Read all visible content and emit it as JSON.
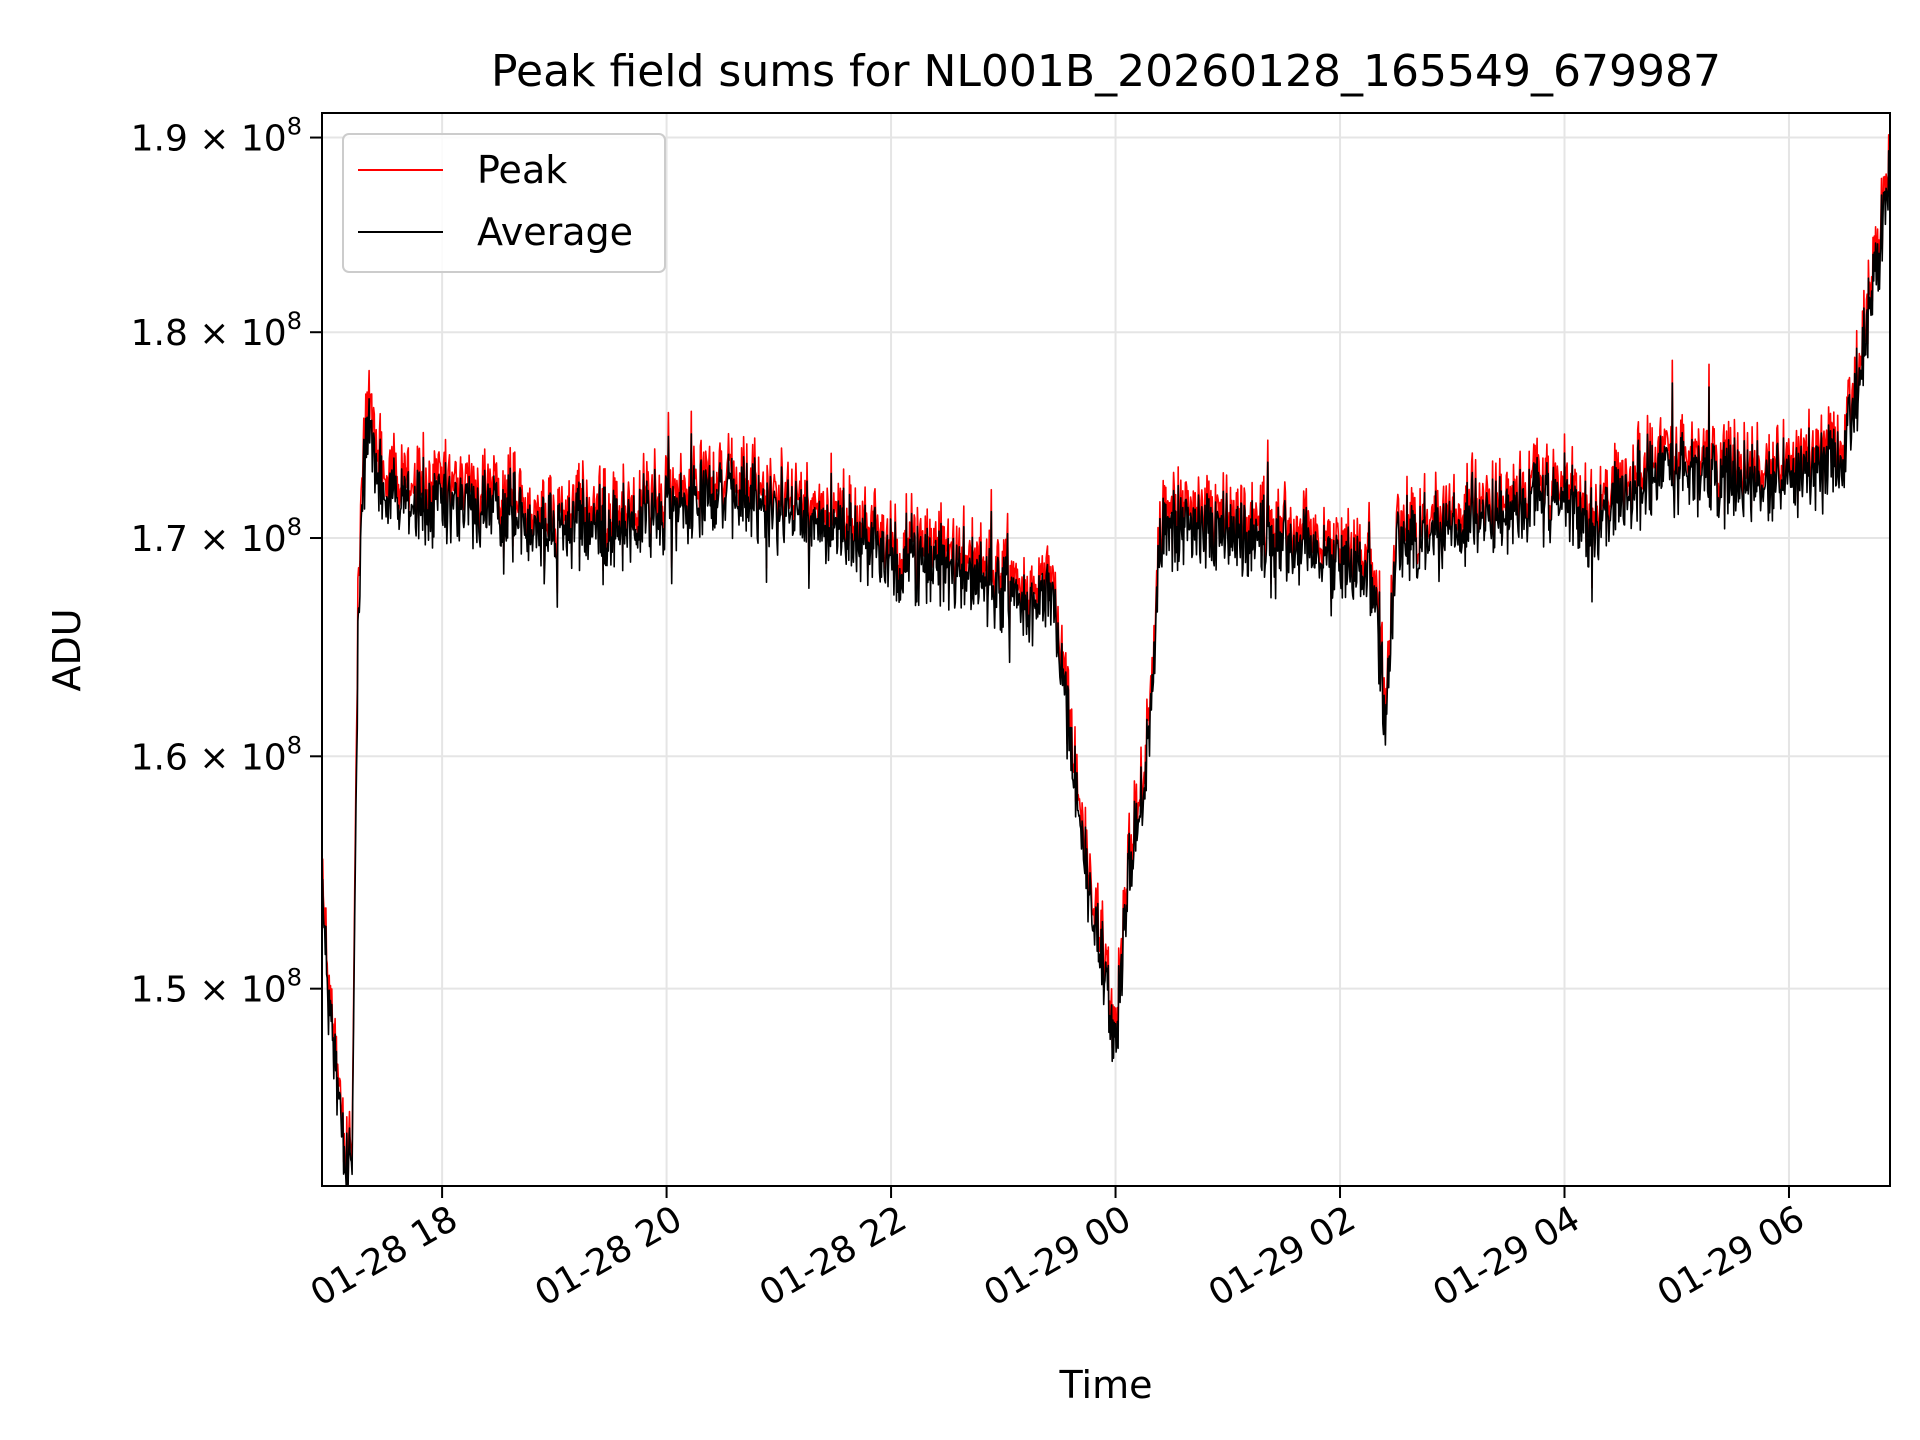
{
  "chart_data": {
    "type": "line",
    "title": "Peak field sums for NL001B_20260128_165549_679987",
    "xlabel": "Time",
    "ylabel": "ADU",
    "y_scale": "log",
    "grid": true,
    "legend_position": "top-left",
    "xlim_hours": [
      16.93,
      30.9
    ],
    "ylim": [
      142000000,
      191300000
    ],
    "x_ticks": [
      {
        "value": 18,
        "label": "01-28 18"
      },
      {
        "value": 20,
        "label": "01-28 20"
      },
      {
        "value": 22,
        "label": "01-28 22"
      },
      {
        "value": 24,
        "label": "01-29 00"
      },
      {
        "value": 26,
        "label": "01-29 02"
      },
      {
        "value": 28,
        "label": "01-29 04"
      },
      {
        "value": 30,
        "label": "01-29 06"
      }
    ],
    "y_ticks": [
      {
        "value": 150000000,
        "mantissa": "1.5",
        "base": "× 10",
        "exp": "8"
      },
      {
        "value": 160000000,
        "mantissa": "1.6",
        "base": "× 10",
        "exp": "8"
      },
      {
        "value": 170000000,
        "mantissa": "1.7",
        "base": "× 10",
        "exp": "8"
      },
      {
        "value": 180000000,
        "mantissa": "1.8",
        "base": "× 10",
        "exp": "8"
      },
      {
        "value": 190000000,
        "mantissa": "1.9",
        "base": "× 10",
        "exp": "8"
      }
    ],
    "series": [
      {
        "name": "Peak",
        "color": "#ff0000",
        "x_hours": [
          16.93,
          17.0,
          17.1,
          17.15,
          17.2,
          17.25,
          17.3,
          17.35,
          17.5,
          17.75,
          18.0,
          18.5,
          19.0,
          19.5,
          20.0,
          20.3,
          20.5,
          21.0,
          21.5,
          22.0,
          22.5,
          23.0,
          23.3,
          23.45,
          23.55,
          23.6,
          23.7,
          23.8,
          23.9,
          24.0,
          24.1,
          24.2,
          24.3,
          24.35,
          24.4,
          24.5,
          25.0,
          25.5,
          26.0,
          26.3,
          26.4,
          26.5,
          27.0,
          27.5,
          28.0,
          28.3,
          28.5,
          29.0,
          29.5,
          30.0,
          30.3,
          30.5,
          30.7,
          30.9
        ],
        "values": [
          154800000,
          149000000,
          145000000,
          143000000,
          143200000,
          168000000,
          175500000,
          176000000,
          173000000,
          172500000,
          172200000,
          172000000,
          171500000,
          171200000,
          172000000,
          173000000,
          172800000,
          172000000,
          171000000,
          170000000,
          169500000,
          168500000,
          167500000,
          168000000,
          163000000,
          161000000,
          157000000,
          153500000,
          151500000,
          147500000,
          155000000,
          157500000,
          161000000,
          166000000,
          171000000,
          171200000,
          171000000,
          170500000,
          169500000,
          169000000,
          162000000,
          170500000,
          171000000,
          172000000,
          172500000,
          171000000,
          173000000,
          174000000,
          173500000,
          173500000,
          174000000,
          175000000,
          181000000,
          189000000
        ]
      },
      {
        "name": "Average",
        "color": "#000000",
        "x_hours": [
          16.93,
          17.0,
          17.1,
          17.15,
          17.2,
          17.25,
          17.3,
          17.35,
          17.5,
          17.75,
          18.0,
          18.5,
          19.0,
          19.5,
          20.0,
          20.3,
          20.5,
          21.0,
          21.5,
          22.0,
          22.5,
          23.0,
          23.3,
          23.45,
          23.55,
          23.6,
          23.7,
          23.8,
          23.9,
          24.0,
          24.1,
          24.2,
          24.3,
          24.35,
          24.4,
          24.5,
          25.0,
          25.5,
          26.0,
          26.3,
          26.4,
          26.5,
          27.0,
          27.5,
          28.0,
          28.3,
          28.5,
          29.0,
          29.5,
          30.0,
          30.3,
          30.5,
          30.7,
          30.9
        ],
        "values": [
          154000000,
          148500000,
          144500000,
          142500000,
          142700000,
          166000000,
          174500000,
          174800000,
          172000000,
          171500000,
          171300000,
          171200000,
          170800000,
          170500000,
          171200000,
          172200000,
          172000000,
          171300000,
          170300000,
          169300000,
          168700000,
          167800000,
          166800000,
          167300000,
          162300000,
          160300000,
          156300000,
          152800000,
          150800000,
          147000000,
          154300000,
          156800000,
          160300000,
          165300000,
          170300000,
          170500000,
          170300000,
          169800000,
          168800000,
          168300000,
          161300000,
          169800000,
          170300000,
          171300000,
          171800000,
          170300000,
          172300000,
          173300000,
          172800000,
          172800000,
          173300000,
          174300000,
          180300000,
          188300000
        ]
      }
    ]
  }
}
